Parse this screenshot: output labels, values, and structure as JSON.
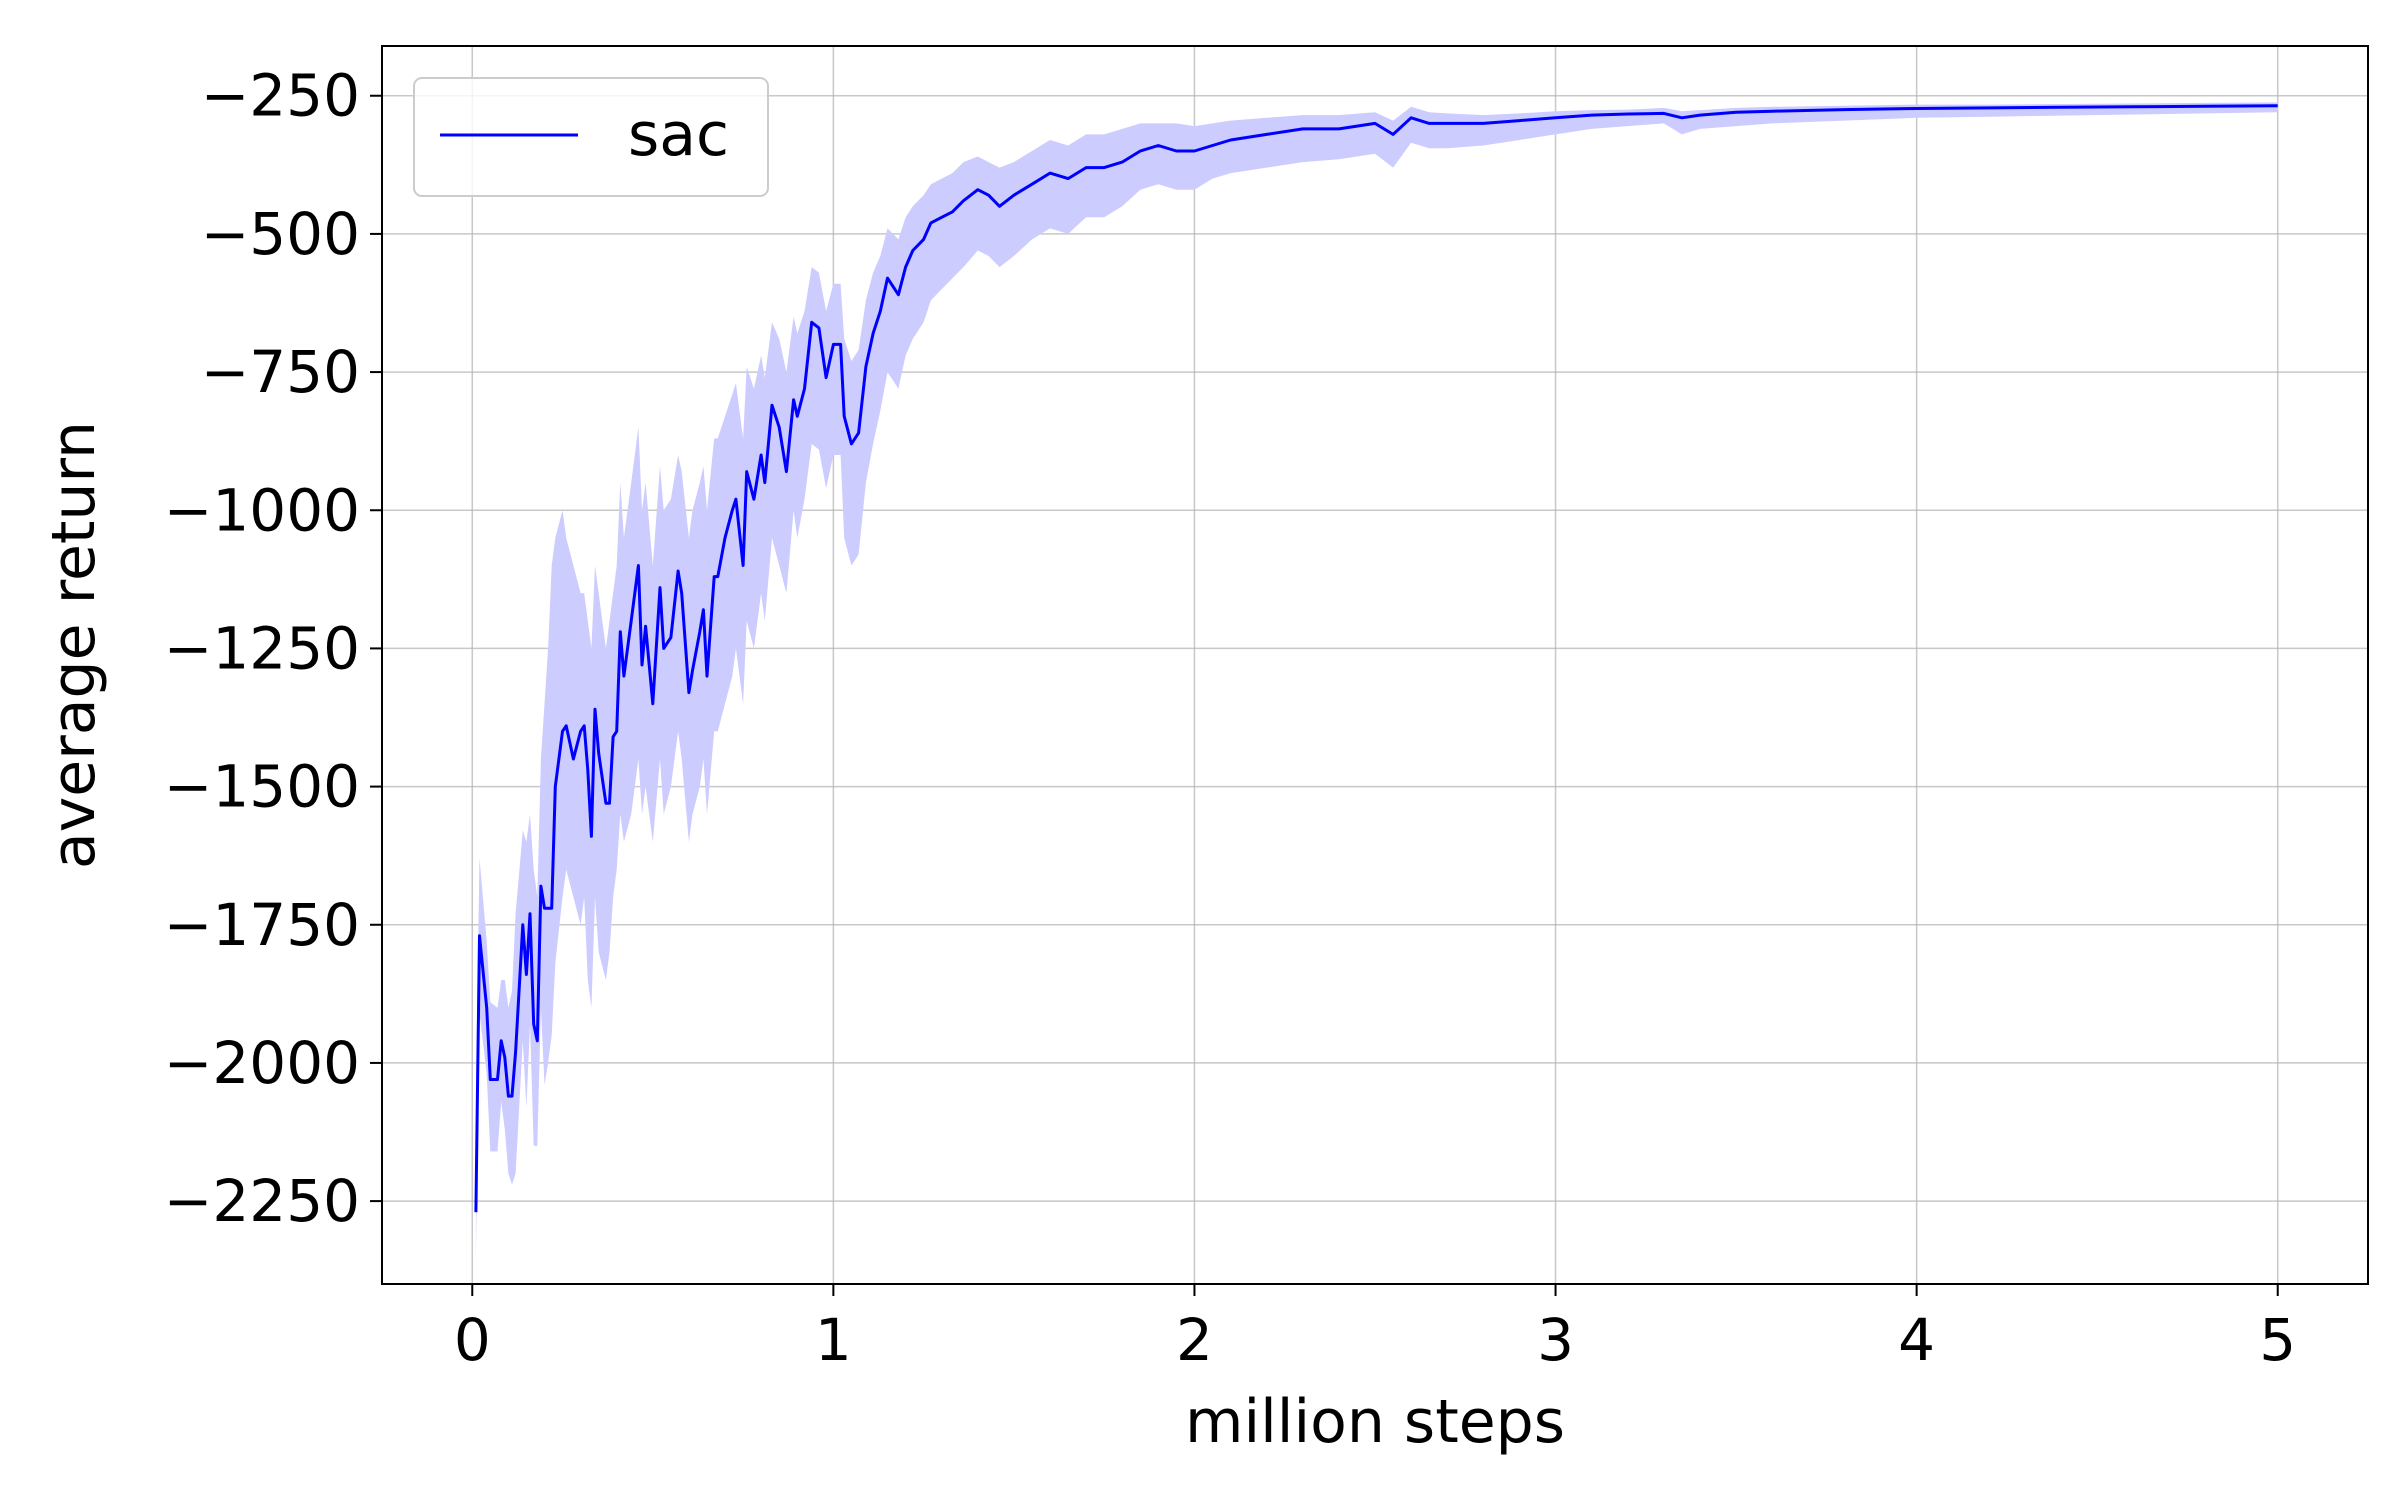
{
  "chart_data": {
    "type": "line",
    "title": "",
    "xlabel": "million steps",
    "ylabel": "average return",
    "xlim": [
      -0.25,
      5.25
    ],
    "ylim": [
      -2400,
      -160
    ],
    "xticks": [
      0,
      1,
      2,
      3,
      4,
      5
    ],
    "xtick_labels": [
      "0",
      "1",
      "2",
      "3",
      "4",
      "5"
    ],
    "yticks": [
      -250,
      -500,
      -750,
      -1000,
      -1250,
      -1500,
      -1750,
      -2000,
      -2250
    ],
    "ytick_labels": [
      "−250",
      "−500",
      "−750",
      "−1000",
      "−1250",
      "−1500",
      "−1750",
      "−2000",
      "−2250"
    ],
    "grid": true,
    "legend_position": "top-left",
    "series": [
      {
        "name": "sac",
        "color": "#0000ff",
        "band_color": "#ccccff",
        "x": [
          0.01,
          0.02,
          0.04,
          0.05,
          0.07,
          0.08,
          0.09,
          0.1,
          0.11,
          0.12,
          0.14,
          0.15,
          0.16,
          0.17,
          0.18,
          0.19,
          0.2,
          0.21,
          0.22,
          0.23,
          0.25,
          0.26,
          0.28,
          0.3,
          0.31,
          0.32,
          0.33,
          0.34,
          0.35,
          0.37,
          0.38,
          0.39,
          0.4,
          0.41,
          0.42,
          0.44,
          0.45,
          0.46,
          0.47,
          0.48,
          0.5,
          0.52,
          0.53,
          0.55,
          0.57,
          0.58,
          0.6,
          0.61,
          0.63,
          0.64,
          0.65,
          0.67,
          0.68,
          0.7,
          0.72,
          0.73,
          0.75,
          0.76,
          0.78,
          0.8,
          0.81,
          0.83,
          0.85,
          0.87,
          0.89,
          0.9,
          0.92,
          0.94,
          0.96,
          0.98,
          1.0,
          1.02,
          1.03,
          1.05,
          1.07,
          1.09,
          1.11,
          1.13,
          1.15,
          1.18,
          1.2,
          1.22,
          1.25,
          1.27,
          1.3,
          1.33,
          1.36,
          1.4,
          1.43,
          1.46,
          1.5,
          1.55,
          1.6,
          1.65,
          1.7,
          1.75,
          1.8,
          1.85,
          1.9,
          1.95,
          2.0,
          2.05,
          2.1,
          2.2,
          2.3,
          2.4,
          2.5,
          2.55,
          2.6,
          2.65,
          2.7,
          2.8,
          2.9,
          3.0,
          3.1,
          3.2,
          3.3,
          3.35,
          3.4,
          3.5,
          3.6,
          3.8,
          4.0,
          4.2,
          4.4,
          4.6,
          4.8,
          5.0
        ],
        "values": [
          -2270,
          -1770,
          -1900,
          -2030,
          -2030,
          -1960,
          -1990,
          -2060,
          -2060,
          -1980,
          -1750,
          -1840,
          -1730,
          -1930,
          -1960,
          -1680,
          -1720,
          -1720,
          -1720,
          -1500,
          -1400,
          -1390,
          -1450,
          -1400,
          -1390,
          -1470,
          -1590,
          -1360,
          -1440,
          -1530,
          -1530,
          -1410,
          -1400,
          -1220,
          -1300,
          -1200,
          -1150,
          -1100,
          -1280,
          -1210,
          -1350,
          -1140,
          -1250,
          -1230,
          -1110,
          -1150,
          -1330,
          -1290,
          -1220,
          -1180,
          -1300,
          -1120,
          -1120,
          -1050,
          -1000,
          -980,
          -1100,
          -930,
          -980,
          -900,
          -950,
          -810,
          -850,
          -930,
          -800,
          -830,
          -780,
          -660,
          -670,
          -760,
          -700,
          -700,
          -830,
          -880,
          -860,
          -740,
          -680,
          -640,
          -580,
          -610,
          -560,
          -530,
          -510,
          -480,
          -470,
          -460,
          -440,
          -420,
          -430,
          -450,
          -430,
          -410,
          -390,
          -400,
          -380,
          -380,
          -370,
          -350,
          -340,
          -350,
          -350,
          -340,
          -330,
          -320,
          -310,
          -310,
          -300,
          -320,
          -290,
          -300,
          -300,
          -300,
          -295,
          -290,
          -285,
          -283,
          -282,
          -290,
          -285,
          -280,
          -278,
          -275,
          -273,
          -272,
          -271,
          -270,
          -269,
          -268
        ],
        "upper": [
          -2050,
          -1630,
          -1780,
          -1890,
          -1900,
          -1850,
          -1850,
          -1900,
          -1870,
          -1730,
          -1580,
          -1600,
          -1550,
          -1650,
          -1700,
          -1450,
          -1350,
          -1250,
          -1100,
          -1050,
          -1000,
          -1050,
          -1100,
          -1150,
          -1150,
          -1200,
          -1250,
          -1100,
          -1150,
          -1250,
          -1200,
          -1150,
          -1100,
          -950,
          -1050,
          -950,
          -900,
          -850,
          -1000,
          -950,
          -1100,
          -920,
          -1000,
          -980,
          -900,
          -930,
          -1050,
          -1000,
          -950,
          -920,
          -1000,
          -870,
          -870,
          -830,
          -790,
          -770,
          -870,
          -740,
          -780,
          -720,
          -760,
          -660,
          -690,
          -750,
          -650,
          -680,
          -640,
          -560,
          -570,
          -640,
          -590,
          -590,
          -690,
          -730,
          -710,
          -620,
          -570,
          -540,
          -490,
          -510,
          -470,
          -450,
          -430,
          -410,
          -400,
          -390,
          -370,
          -360,
          -370,
          -380,
          -370,
          -350,
          -330,
          -340,
          -320,
          -320,
          -310,
          -300,
          -300,
          -300,
          -305,
          -300,
          -295,
          -290,
          -285,
          -285,
          -280,
          -295,
          -270,
          -280,
          -282,
          -285,
          -282,
          -278,
          -276,
          -275,
          -272,
          -278,
          -276,
          -272,
          -270,
          -268,
          -266,
          -266,
          -265,
          -264,
          -263,
          -262
        ],
        "lower": [
          -2350,
          -1910,
          -2020,
          -2160,
          -2160,
          -2070,
          -2120,
          -2200,
          -2220,
          -2200,
          -1960,
          -2080,
          -1930,
          -2150,
          -2150,
          -1900,
          -2040,
          -2000,
          -1950,
          -1820,
          -1700,
          -1650,
          -1700,
          -1750,
          -1700,
          -1850,
          -1900,
          -1700,
          -1800,
          -1850,
          -1800,
          -1700,
          -1650,
          -1550,
          -1600,
          -1550,
          -1500,
          -1450,
          -1550,
          -1500,
          -1600,
          -1450,
          -1550,
          -1500,
          -1400,
          -1450,
          -1600,
          -1550,
          -1500,
          -1450,
          -1550,
          -1400,
          -1400,
          -1350,
          -1300,
          -1250,
          -1350,
          -1200,
          -1250,
          -1150,
          -1200,
          -1050,
          -1100,
          -1150,
          -1000,
          -1050,
          -980,
          -880,
          -890,
          -960,
          -900,
          -900,
          -1050,
          -1100,
          -1080,
          -950,
          -880,
          -820,
          -750,
          -780,
          -720,
          -690,
          -660,
          -620,
          -600,
          -580,
          -560,
          -530,
          -540,
          -560,
          -540,
          -510,
          -490,
          -500,
          -470,
          -470,
          -450,
          -420,
          -410,
          -420,
          -420,
          -400,
          -390,
          -380,
          -370,
          -365,
          -355,
          -380,
          -335,
          -345,
          -345,
          -340,
          -330,
          -320,
          -310,
          -305,
          -300,
          -320,
          -310,
          -305,
          -300,
          -295,
          -290,
          -288,
          -286,
          -284,
          -282,
          -280
        ]
      }
    ]
  }
}
